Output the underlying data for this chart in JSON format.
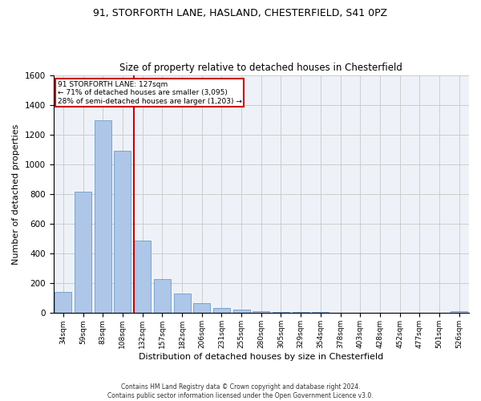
{
  "title1": "91, STORFORTH LANE, HASLAND, CHESTERFIELD, S41 0PZ",
  "title2": "Size of property relative to detached houses in Chesterfield",
  "xlabel": "Distribution of detached houses by size in Chesterfield",
  "ylabel": "Number of detached properties",
  "footnote": "Contains HM Land Registry data © Crown copyright and database right 2024.\nContains public sector information licensed under the Open Government Licence v3.0.",
  "categories": [
    "34sqm",
    "59sqm",
    "83sqm",
    "108sqm",
    "132sqm",
    "157sqm",
    "182sqm",
    "206sqm",
    "231sqm",
    "255sqm",
    "280sqm",
    "305sqm",
    "329sqm",
    "354sqm",
    "378sqm",
    "403sqm",
    "428sqm",
    "452sqm",
    "477sqm",
    "501sqm",
    "526sqm"
  ],
  "values": [
    140,
    815,
    1295,
    1090,
    490,
    230,
    130,
    65,
    37,
    25,
    15,
    10,
    10,
    10,
    5,
    3,
    2,
    2,
    2,
    2,
    15
  ],
  "bar_color": "#aec6e8",
  "bar_edge_color": "#5a8fc0",
  "vline_x_index": 4,
  "vline_color": "#cc0000",
  "annotation_text": "91 STORFORTH LANE: 127sqm\n← 71% of detached houses are smaller (3,095)\n28% of semi-detached houses are larger (1,203) →",
  "annotation_box_color": "#cc0000",
  "ylim": [
    0,
    1600
  ],
  "yticks": [
    0,
    200,
    400,
    600,
    800,
    1000,
    1200,
    1400,
    1600
  ],
  "grid_color": "#cccccc",
  "bg_color": "#eef2f8",
  "title1_fontsize": 9,
  "title2_fontsize": 8.5,
  "xlabel_fontsize": 8,
  "ylabel_fontsize": 8
}
